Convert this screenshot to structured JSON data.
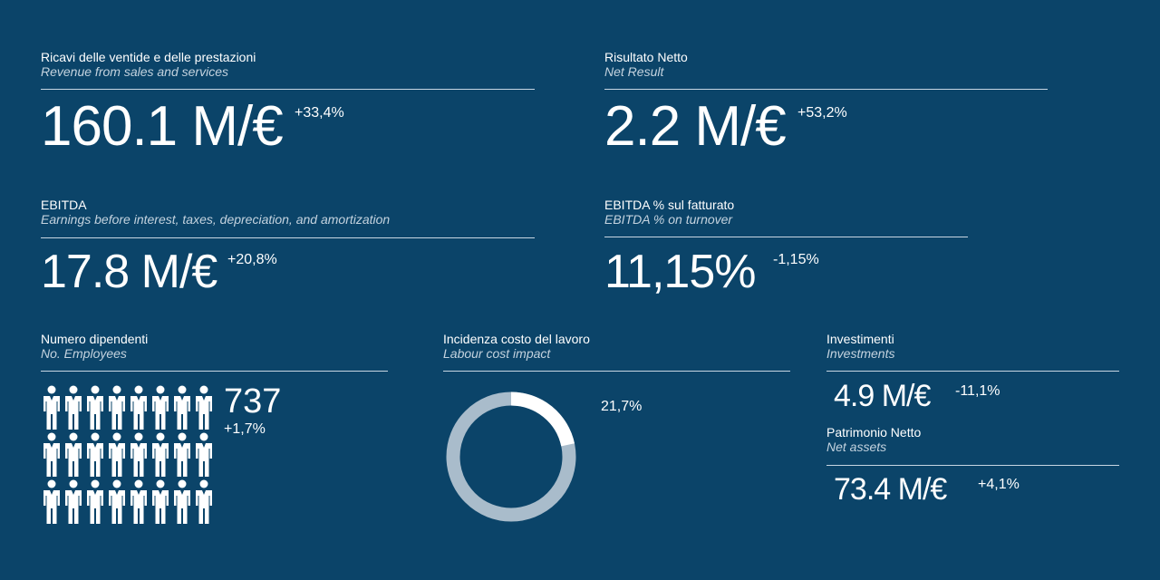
{
  "revenue": {
    "title": "Ricavi delle ventide e delle prestazioni",
    "subtitle": "Revenue from sales and services",
    "value": "160.1 M/€",
    "delta": "+33,4%"
  },
  "net_result": {
    "title": "Risultato Netto",
    "subtitle": "Net Result",
    "value": "2.2 M/€",
    "delta": "+53,2%"
  },
  "ebitda": {
    "title": "EBITDA",
    "subtitle": "Earnings before interest, taxes, depreciation, and amortization",
    "value": "17.8 M/€",
    "delta": "+20,8%"
  },
  "ebitda_pct": {
    "title": "EBITDA % sul fatturato",
    "subtitle": "EBITDA % on turnover",
    "value": "11,15%",
    "delta": "-1,15%"
  },
  "employees": {
    "title": "Numero dipendenti",
    "subtitle": "No. Employees",
    "value": "737",
    "delta": "+1,7%",
    "icon": "person-icon"
  },
  "labour_cost": {
    "title": "Incidenza costo del lavoro",
    "subtitle": "Labour cost impact",
    "percent_label": "21,7%",
    "fraction": 0.217
  },
  "investments": {
    "title": "Investimenti",
    "subtitle": "Investments",
    "value": "4.9 M/€",
    "delta": "-11,1%"
  },
  "net_assets": {
    "title": "Patrimonio Netto",
    "subtitle": "Net assets",
    "value": "73.4 M/€",
    "delta": "+4,1%"
  },
  "colors": {
    "background": "#0b4469",
    "donut_track": "#a9bccb",
    "donut_fill": "#ffffff"
  }
}
